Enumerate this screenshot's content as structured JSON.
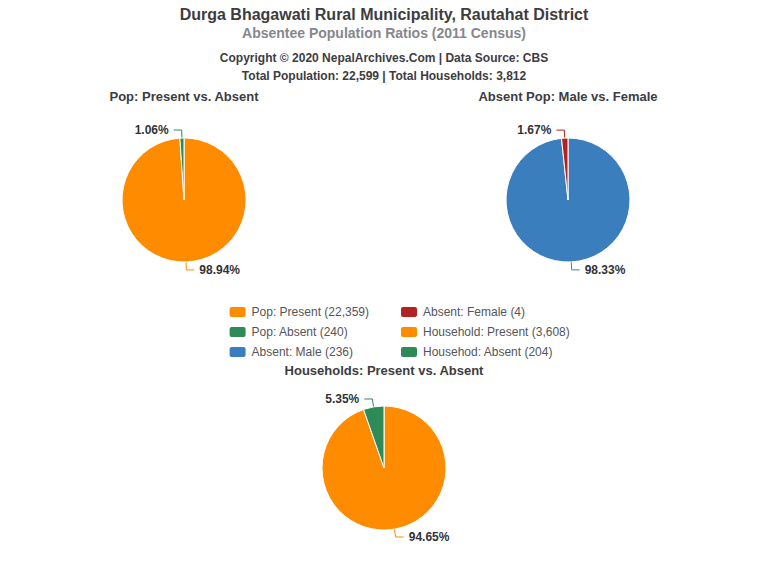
{
  "title": "Durga Bhagawati Rural Municipality, Rautahat District",
  "subtitle": "Absentee Population Ratios (2011 Census)",
  "annotations": [
    "Copyright © 2020 NepalArchives.Com | Data Source: CBS",
    "Total Population: 22,599 | Total Households: 3,812"
  ],
  "legend": "center",
  "chart_data": [
    {
      "type": "pie",
      "title": "Pop: Present vs. Absent",
      "categories": [
        "Pop: Present (22,359)",
        "Pop: Absent (240)"
      ],
      "values": [
        98.94,
        1.06
      ],
      "value_labels": [
        "98.94%",
        "1.06%"
      ],
      "colors": [
        "#FF8C00",
        "#2E8B57"
      ],
      "data_labels": true
    },
    {
      "type": "pie",
      "title": "Absent Pop: Male vs. Female",
      "categories": [
        "Absent: Male (236)",
        "Absent: Female (4)"
      ],
      "values": [
        98.33,
        1.67
      ],
      "value_labels": [
        "98.33%",
        "1.67%"
      ],
      "colors": [
        "#3A7EBD",
        "#B22222"
      ],
      "data_labels": true
    },
    {
      "type": "pie",
      "title": "Households: Present vs. Absent",
      "categories": [
        "Household: Present (3,608)",
        "Househod: Absent (204)"
      ],
      "values": [
        94.65,
        5.35
      ],
      "value_labels": [
        "94.65%",
        "5.35%"
      ],
      "colors": [
        "#FF8C00",
        "#2E8B57"
      ],
      "data_labels": true
    }
  ]
}
